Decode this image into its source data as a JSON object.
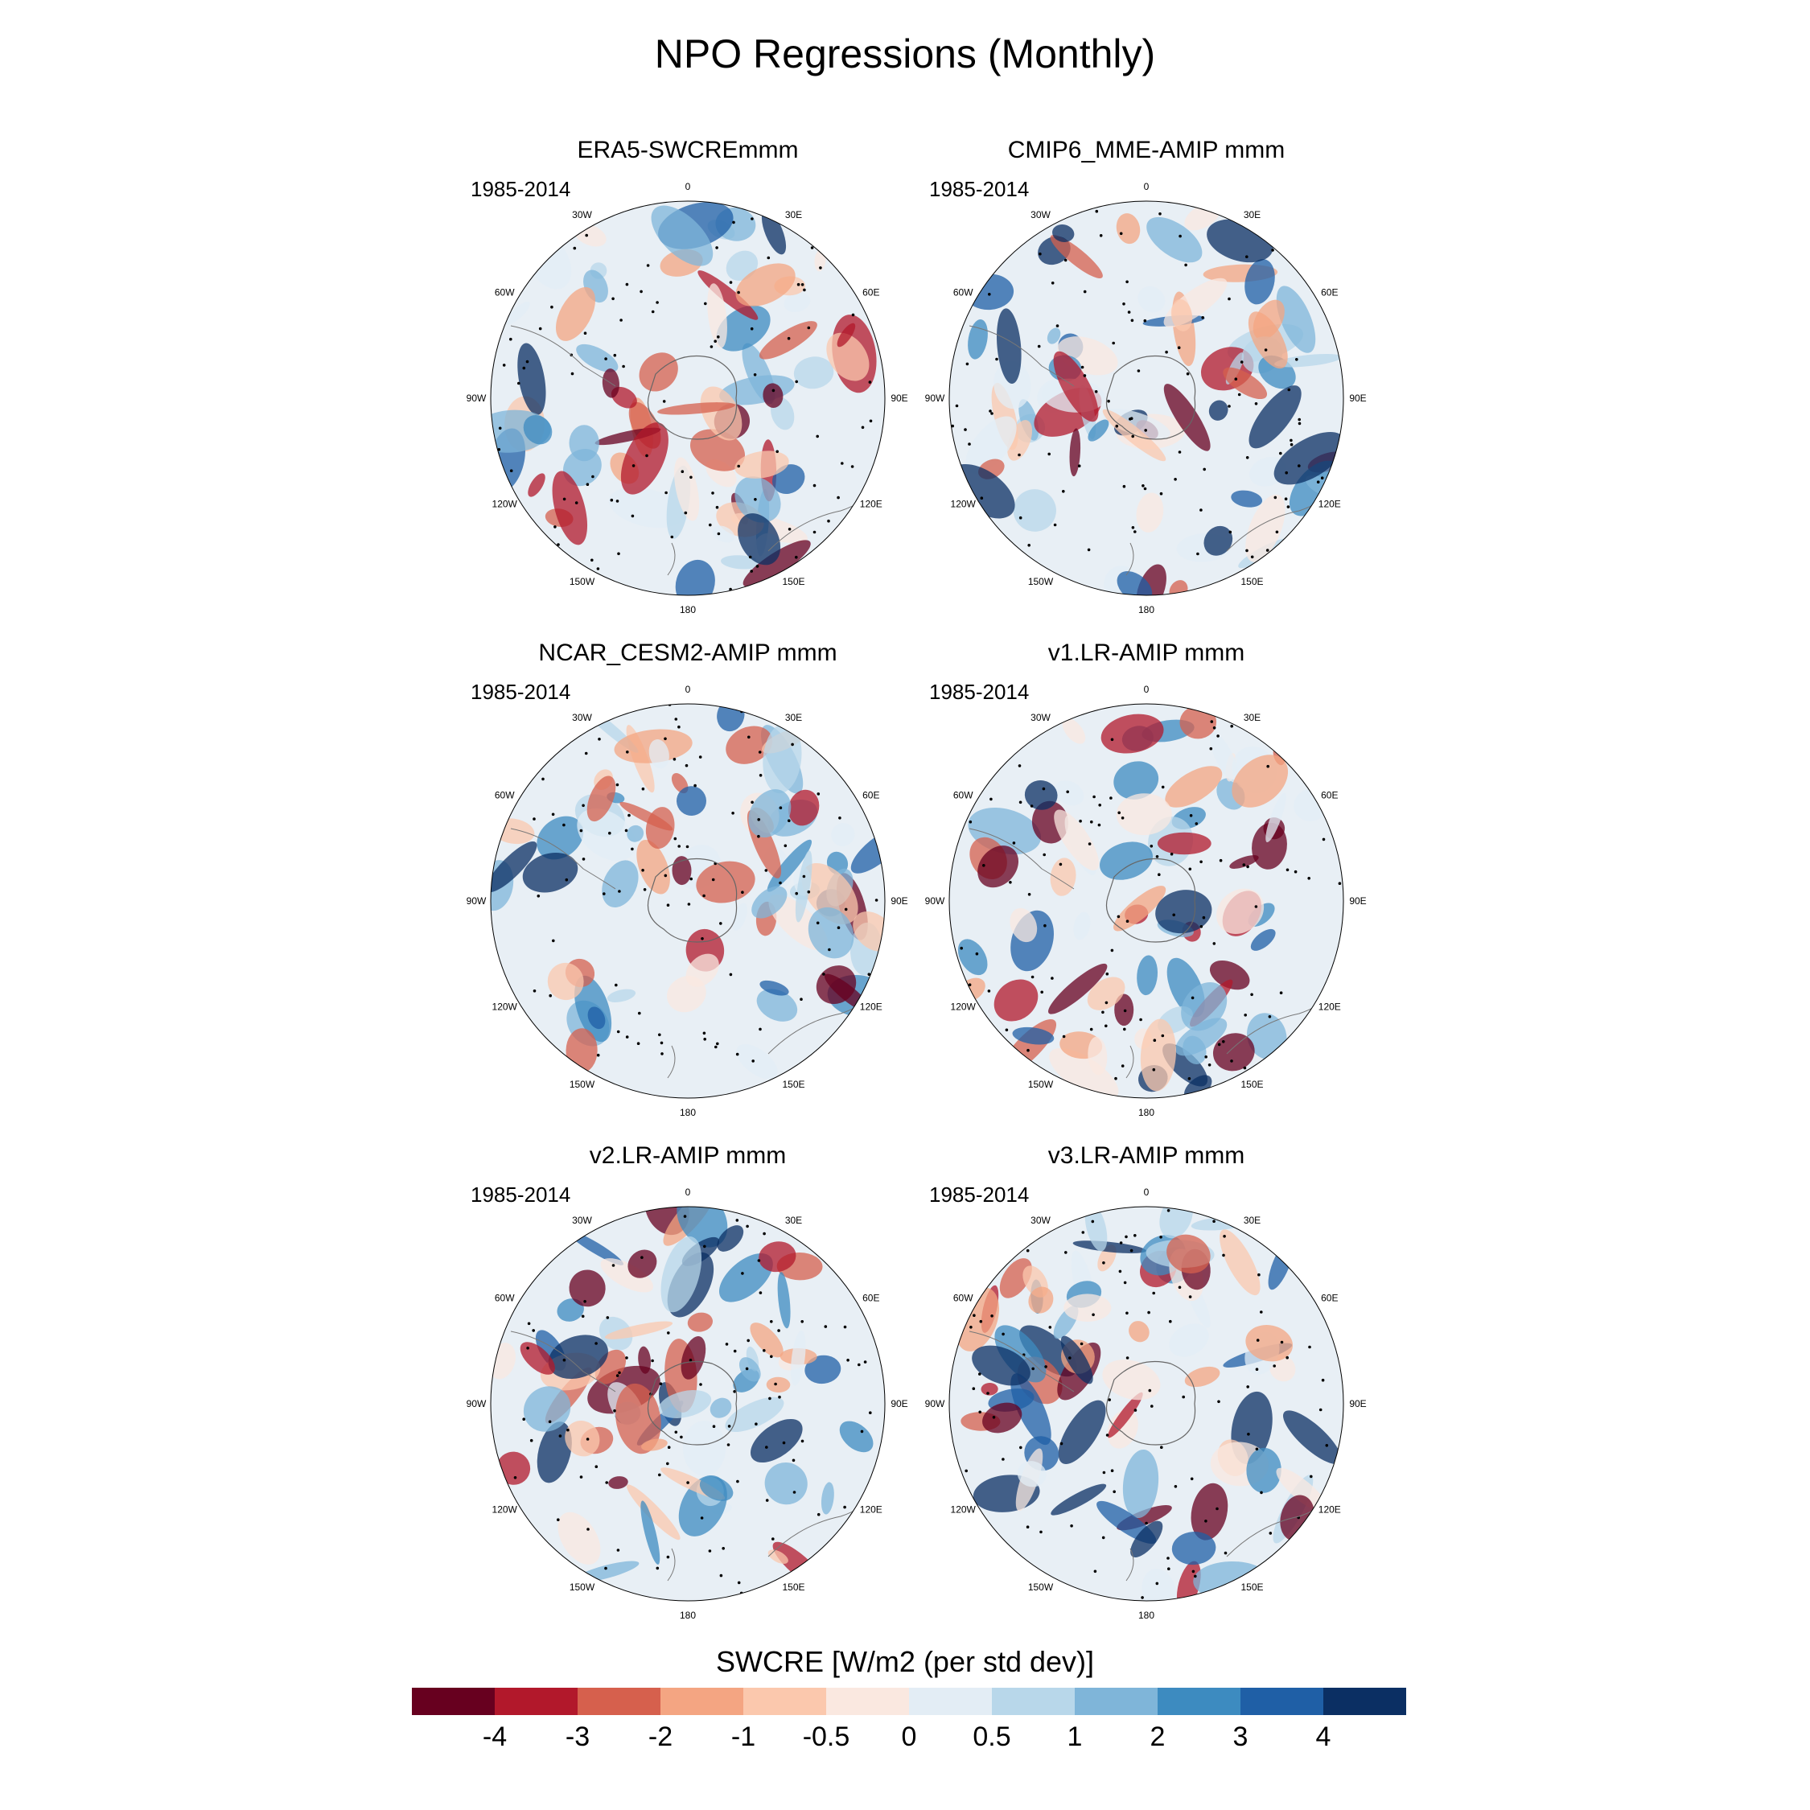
{
  "title": "NPO Regressions (Monthly)",
  "panels": [
    {
      "title": "ERA5-SWCREmmm",
      "period": "1985-2014"
    },
    {
      "title": "CMIP6_MME-AMIP  mmm",
      "period": "1985-2014"
    },
    {
      "title": "NCAR_CESM2-AMIP  mmm",
      "period": "1985-2014"
    },
    {
      "title": "v1.LR-AMIP  mmm",
      "period": "1985-2014"
    },
    {
      "title": "v2.LR-AMIP  mmm",
      "period": "1985-2014"
    },
    {
      "title": "v3.LR-AMIP  mmm",
      "period": "1985-2014"
    }
  ],
  "longitude_labels": [
    "0",
    "30E",
    "60E",
    "90E",
    "120E",
    "150E",
    "180",
    "150W",
    "120W",
    "90W",
    "60W",
    "30W"
  ],
  "colorbar": {
    "title": "SWCRE [W/m2 (per std dev)]",
    "ticks": [
      "-4",
      "-3",
      "-2",
      "-1",
      "-0.5",
      "0",
      "0.5",
      "1",
      "2",
      "3",
      "4"
    ],
    "colors": [
      "#67001f",
      "#b2182b",
      "#d6604d",
      "#f4a582",
      "#fbc8ad",
      "#fae8e0",
      "#e3edf5",
      "#b8d7ea",
      "#7fb5d9",
      "#3d8bc0",
      "#1f5fa6",
      "#0b2f63"
    ]
  }
}
